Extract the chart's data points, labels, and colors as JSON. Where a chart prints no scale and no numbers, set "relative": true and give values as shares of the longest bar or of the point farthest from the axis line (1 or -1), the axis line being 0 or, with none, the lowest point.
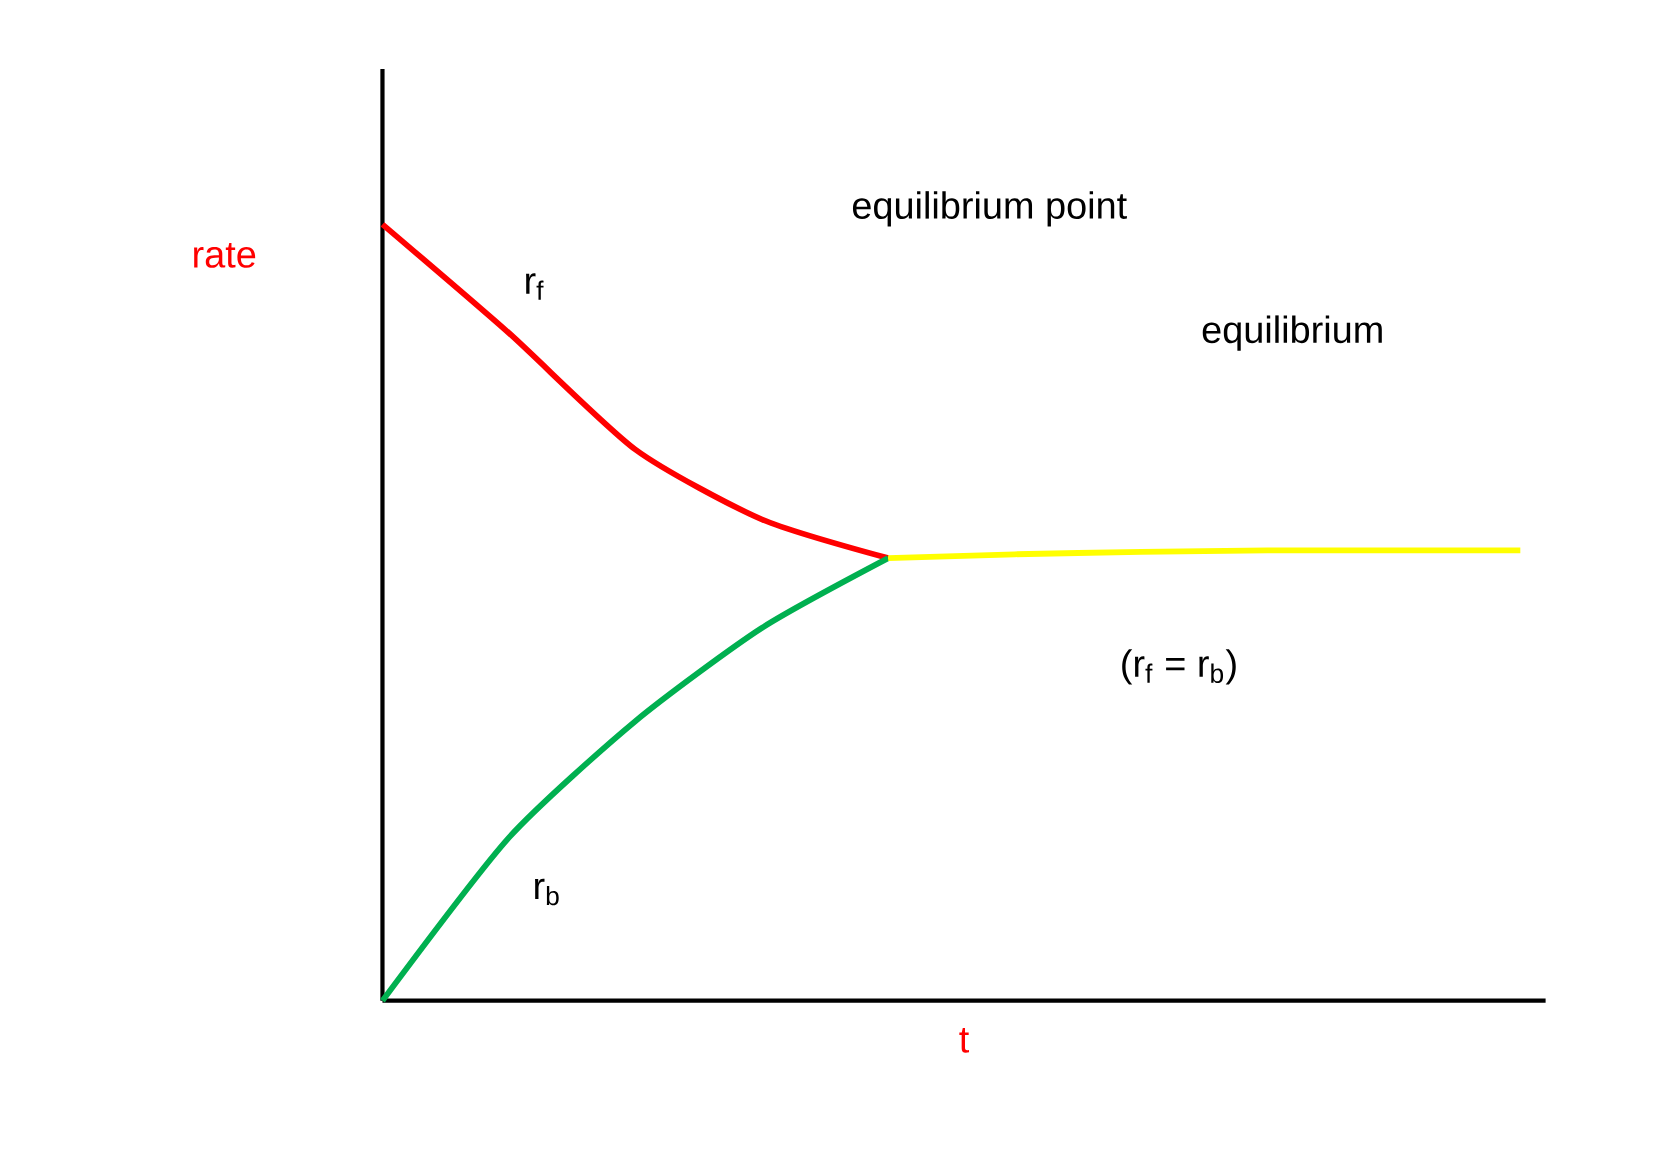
{
  "chart_data": {
    "type": "line",
    "relative": true,
    "xlabel": "t",
    "ylabel": "rate",
    "categories": [
      null,
      null,
      null,
      null,
      null,
      null,
      null,
      null,
      null,
      null
    ],
    "series": [
      {
        "name": "r$_{f}$",
        "color": "#ff0000",
        "values": [
          1.0,
          0.86,
          0.71,
          0.62,
          0.57,
          null,
          null,
          null,
          null,
          null
        ]
      },
      {
        "name": "r$_{b}$",
        "color": "#00b050",
        "values": [
          0.0,
          0.21,
          0.36,
          0.48,
          0.57,
          null,
          null,
          null,
          null,
          null
        ]
      },
      {
        "color": "#ffff00",
        "values": [
          null,
          null,
          null,
          null,
          0.57,
          0.575,
          0.578,
          0.58,
          0.58,
          0.58
        ]
      }
    ],
    "annotations": [
      "equilibrium point",
      "equilibrium",
      "(r$_{f}$ = r$_{b}$)"
    ],
    "legend": false
  }
}
